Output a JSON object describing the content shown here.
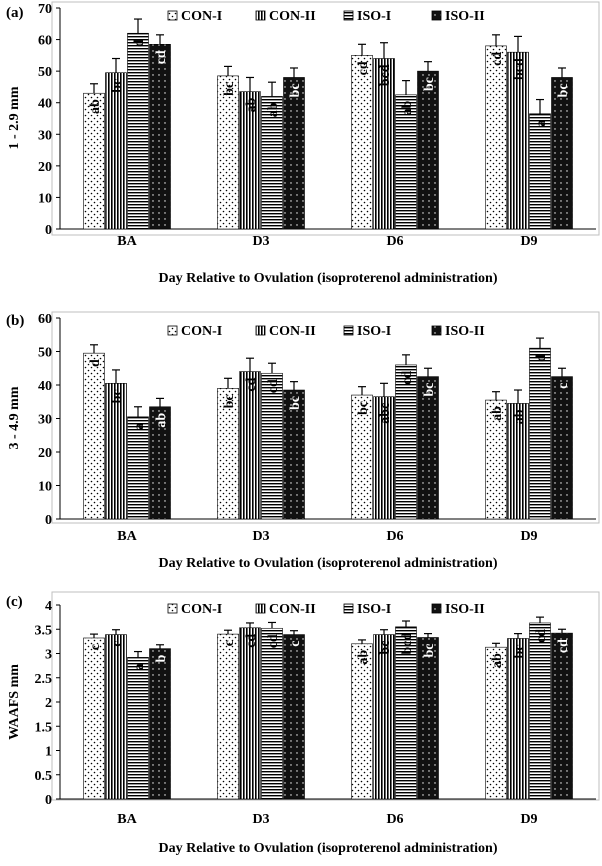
{
  "chart_data": [
    {
      "type": "bar",
      "panel_label": "(a)",
      "title": "",
      "xlabel": "Day Relative to Ovulation (isoproterenol administration)",
      "ylabel": "1 - 2.9 mm",
      "ylim": [
        0,
        70
      ],
      "yticks": [
        0,
        10,
        20,
        30,
        40,
        50,
        60,
        70
      ],
      "ytick_labels": [
        "0",
        "10",
        "20",
        "30",
        "40",
        "50",
        "60",
        "70"
      ],
      "categories": [
        "BA",
        "D3",
        "D6",
        "D9"
      ],
      "legend": [
        "CON-I",
        "CON-II",
        "ISO-I",
        "ISO-II"
      ],
      "legend_position": "top-right",
      "series": [
        {
          "name": "CON-I",
          "values": [
            43.0,
            48.5,
            55.0,
            58.0
          ],
          "errors": [
            3.0,
            3.0,
            3.5,
            3.5
          ],
          "labels": [
            "ab",
            "bc",
            "cd",
            "cd"
          ]
        },
        {
          "name": "CON-II",
          "values": [
            49.5,
            43.5,
            54.0,
            56.0
          ],
          "errors": [
            4.5,
            4.5,
            5.0,
            5.0
          ],
          "labels": [
            "bc",
            "ab",
            "bcd",
            "bcd"
          ]
        },
        {
          "name": "ISO-I",
          "values": [
            62.0,
            42.0,
            42.5,
            36.5
          ],
          "errors": [
            4.5,
            4.5,
            4.5,
            4.5
          ],
          "labels": [
            "d",
            "ab",
            "ab",
            "a"
          ]
        },
        {
          "name": "ISO-II",
          "values": [
            58.5,
            48.0,
            50.0,
            48.0
          ],
          "errors": [
            3.0,
            3.0,
            3.0,
            3.0
          ],
          "labels": [
            "cd",
            "bc",
            "bc",
            "bc"
          ]
        }
      ]
    },
    {
      "type": "bar",
      "panel_label": "(b)",
      "title": "",
      "xlabel": "Day Relative to Ovulation (isoproterenol administration)",
      "ylabel": "3 - 4.9 mm",
      "ylim": [
        0,
        60
      ],
      "yticks": [
        0,
        10,
        20,
        30,
        40,
        50,
        60
      ],
      "ytick_labels": [
        "0",
        "10",
        "20",
        "30",
        "40",
        "50",
        "60"
      ],
      "categories": [
        "BA",
        "D3",
        "D6",
        "D9"
      ],
      "legend": [
        "CON-I",
        "CON-II",
        "ISO-I",
        "ISO-II"
      ],
      "legend_position": "top-right",
      "series": [
        {
          "name": "CON-I",
          "values": [
            49.5,
            39.0,
            37.0,
            35.5
          ],
          "errors": [
            2.5,
            3.0,
            2.5,
            2.5
          ],
          "labels": [
            "d",
            "bc",
            "bc",
            "ab"
          ]
        },
        {
          "name": "CON-II",
          "values": [
            40.5,
            44.0,
            36.5,
            34.5
          ],
          "errors": [
            4.0,
            4.0,
            4.0,
            4.0
          ],
          "labels": [
            "bc",
            "cd",
            "abc",
            "ab"
          ]
        },
        {
          "name": "ISO-I",
          "values": [
            30.5,
            43.5,
            46.0,
            51.0
          ],
          "errors": [
            3.0,
            3.0,
            3.0,
            3.0
          ],
          "labels": [
            "a",
            "cd",
            "cd",
            "d"
          ]
        },
        {
          "name": "ISO-II",
          "values": [
            33.5,
            38.5,
            42.5,
            42.5
          ],
          "errors": [
            2.5,
            2.5,
            2.5,
            2.5
          ],
          "labels": [
            "ab",
            "bc",
            "bc",
            "c"
          ]
        }
      ]
    },
    {
      "type": "bar",
      "panel_label": "(c)",
      "title": "",
      "xlabel": "Day Relative to Ovulation (isoproterenol administration)",
      "ylabel": "WAAFS mm",
      "ylim": [
        0,
        4
      ],
      "yticks": [
        0,
        0.5,
        1,
        1.5,
        2,
        2.5,
        3,
        3.5,
        4
      ],
      "ytick_labels": [
        "0",
        "0.5",
        "1",
        "1.5",
        "2",
        "2.5",
        "3",
        "3.5",
        "4"
      ],
      "categories": [
        "BA",
        "D3",
        "D6",
        "D9"
      ],
      "legend": [
        "CON-I",
        "CON-II",
        "ISO-I",
        "ISO-II"
      ],
      "legend_position": "top-right",
      "series": [
        {
          "name": "CON-I",
          "values": [
            3.32,
            3.4,
            3.2,
            3.13
          ],
          "errors": [
            0.08,
            0.08,
            0.08,
            0.08
          ],
          "labels": [
            "c",
            "c",
            "ab",
            "ab"
          ]
        },
        {
          "name": "CON-II",
          "values": [
            3.39,
            3.53,
            3.39,
            3.31
          ],
          "errors": [
            0.1,
            0.1,
            0.1,
            0.1
          ],
          "labels": [
            "c",
            "cd",
            "bc",
            "bc"
          ]
        },
        {
          "name": "ISO-I",
          "values": [
            2.92,
            3.52,
            3.55,
            3.63
          ],
          "errors": [
            0.12,
            0.12,
            0.12,
            0.12
          ],
          "labels": [
            "a",
            "cd",
            "bcd",
            "cd"
          ]
        },
        {
          "name": "ISO-II",
          "values": [
            3.1,
            3.39,
            3.33,
            3.42
          ],
          "errors": [
            0.08,
            0.08,
            0.08,
            0.08
          ],
          "labels": [
            "b",
            "c",
            "bc",
            "cd"
          ]
        }
      ]
    }
  ]
}
